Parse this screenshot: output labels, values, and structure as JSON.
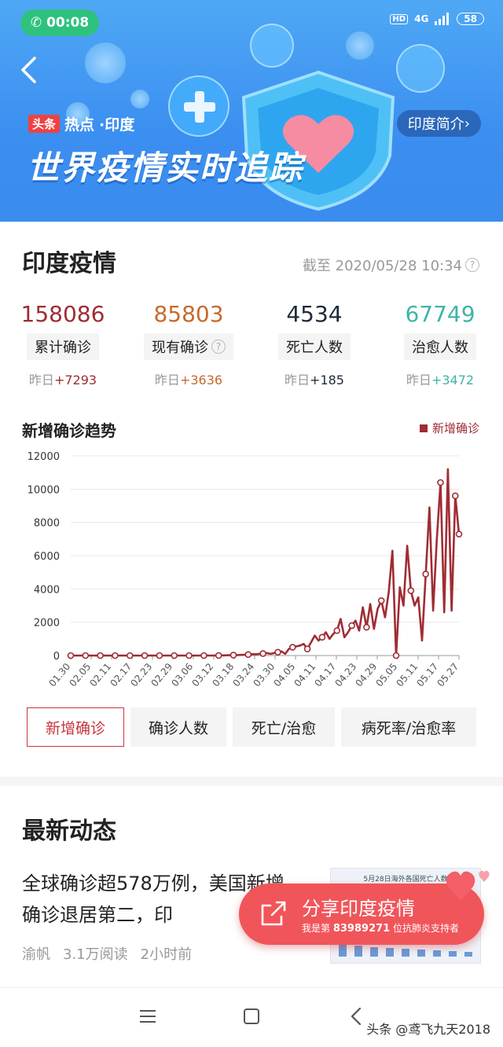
{
  "status_bar": {
    "time": "00:08",
    "hd": "HD",
    "network": "4G",
    "battery": "58"
  },
  "banner": {
    "brand_tag": "头条",
    "brand_hot": "热点",
    "brand_region": "·印度",
    "title": "世界疫情实时追踪",
    "intro_button": "印度简介"
  },
  "summary": {
    "title": "印度疫情",
    "as_of": "截至 2020/05/28 10:34",
    "stats": [
      {
        "value": "158086",
        "label": "累计确诊",
        "delta_prefix": "昨日",
        "delta": "+7293",
        "color": "#a02c34"
      },
      {
        "value": "85803",
        "label": "现有确诊",
        "delta_prefix": "昨日",
        "delta": "+3636",
        "color": "#c66a2e"
      },
      {
        "value": "4534",
        "label": "死亡人数",
        "delta_prefix": "昨日",
        "delta": "+185",
        "color": "#1f2b3a"
      },
      {
        "value": "67749",
        "label": "治愈人数",
        "delta_prefix": "昨日",
        "delta": "+3472",
        "color": "#3fb4a7"
      }
    ]
  },
  "chart_data": {
    "type": "line",
    "title": "新增确诊趋势",
    "legend": "新增确诊",
    "legend_position": "top-right",
    "color": "#a02c34",
    "ylim": [
      0,
      12000
    ],
    "yticks": [
      0,
      2000,
      4000,
      6000,
      8000,
      10000,
      12000
    ],
    "xticks": [
      "01.30",
      "02.05",
      "02.11",
      "02.17",
      "02.23",
      "02.29",
      "03.06",
      "03.12",
      "03.18",
      "03.24",
      "03.30",
      "04.05",
      "04.11",
      "04.17",
      "04.23",
      "04.29",
      "05.05",
      "05.11",
      "05.17",
      "05.27"
    ],
    "grid": true,
    "series": [
      {
        "values": [
          0,
          0,
          0,
          0,
          0,
          0,
          0,
          0,
          0,
          0,
          0,
          0,
          0,
          0,
          0,
          0,
          0,
          0,
          0,
          0,
          0,
          0,
          0,
          0,
          0,
          0,
          0,
          0,
          0,
          0,
          0,
          0,
          0,
          0,
          0,
          0,
          0,
          0,
          2,
          3,
          5,
          10,
          15,
          20,
          25,
          30,
          40,
          50,
          60,
          80,
          80,
          100,
          120,
          150,
          100,
          150,
          200,
          250,
          100,
          400,
          500,
          550,
          600,
          700,
          400,
          800,
          1200,
          900,
          1100,
          1400,
          1000,
          1300,
          1500,
          2200,
          1100,
          1400,
          1800,
          2100,
          1500,
          2900,
          1700,
          3100,
          1600,
          2800,
          3300,
          2300,
          3800,
          6300,
          0,
          4100,
          3000,
          6600,
          3900,
          3000,
          3500,
          900,
          4900,
          8900,
          2700,
          7000,
          10400,
          2600,
          11200,
          2700,
          9600,
          7300
        ]
      }
    ]
  },
  "tabs": [
    "新增确诊",
    "确诊人数",
    "死亡/治愈",
    "病死率/治愈率"
  ],
  "news": {
    "section_title": "最新动态",
    "item": {
      "title": "全球确诊超578万例，美国新增确诊退居第二，印",
      "author": "渝帆",
      "reads": "3.1万阅读",
      "time": "2小时前",
      "thumb_caption": "5月28日海外各国死亡人数"
    }
  },
  "share": {
    "label": "分享印度疫情",
    "sub_prefix": "我是第",
    "number": "83989271",
    "sub_suffix": "位抗肺炎支持者"
  },
  "watermark": "头条 @鸢飞九天2018"
}
